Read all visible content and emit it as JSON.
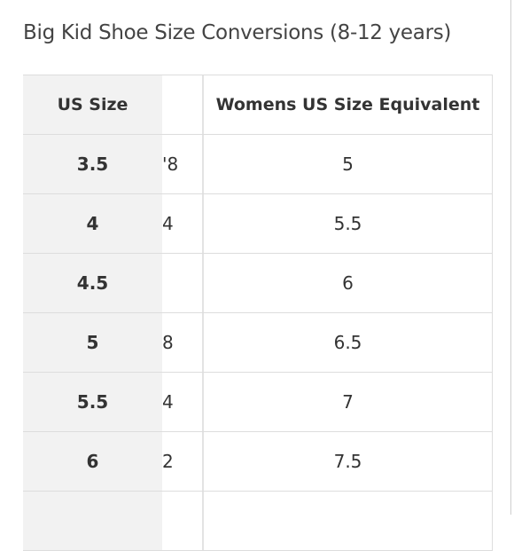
{
  "title": "Big Kid Shoe Size Conversions (8-12 years)",
  "table": {
    "header": [
      "US Size",
      null,
      "Womens US Size Equivalent"
    ],
    "rows": [
      [
        "3.5",
        "'8",
        "5"
      ],
      [
        "4",
        "4",
        "5.5"
      ],
      [
        "4.5",
        null,
        "6"
      ],
      [
        "5",
        "8",
        "6.5"
      ],
      [
        "5.5",
        "4",
        "7"
      ],
      [
        "6",
        "2",
        "7.5"
      ]
    ]
  }
}
